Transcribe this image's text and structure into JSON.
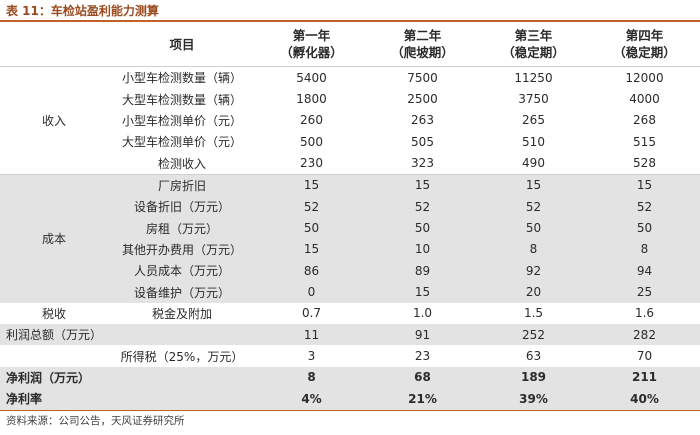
{
  "title": "表 11：车检站盈利能力测算",
  "header": {
    "item": "项目",
    "cols": [
      {
        "line1": "第一年",
        "line2": "（孵化器）"
      },
      {
        "line1": "第二年",
        "line2": "（爬坡期）"
      },
      {
        "line1": "第三年",
        "line2": "（稳定期）"
      },
      {
        "line1": "第四年",
        "line2": "（稳定期）"
      }
    ]
  },
  "groups": {
    "income": "收入",
    "cost": "成本",
    "tax": "税收"
  },
  "rows": {
    "income": [
      {
        "label": "小型车检测数量（辆）",
        "values": [
          "5400",
          "7500",
          "11250",
          "12000"
        ]
      },
      {
        "label": "大型车检测数量（辆）",
        "values": [
          "1800",
          "2500",
          "3750",
          "4000"
        ]
      },
      {
        "label": "小型车检测单价（元）",
        "values": [
          "260",
          "263",
          "265",
          "268"
        ]
      },
      {
        "label": "大型车检测单价（元）",
        "values": [
          "500",
          "505",
          "510",
          "515"
        ]
      },
      {
        "label": "检测收入",
        "values": [
          "230",
          "323",
          "490",
          "528"
        ]
      }
    ],
    "cost": [
      {
        "label": "厂房折旧",
        "values": [
          "15",
          "15",
          "15",
          "15"
        ]
      },
      {
        "label": "设备折旧（万元）",
        "values": [
          "52",
          "52",
          "52",
          "52"
        ]
      },
      {
        "label": "房租（万元）",
        "values": [
          "50",
          "50",
          "50",
          "50"
        ]
      },
      {
        "label": "其他开办费用（万元）",
        "values": [
          "15",
          "10",
          "8",
          "8"
        ]
      },
      {
        "label": "人员成本（万元）",
        "values": [
          "86",
          "89",
          "92",
          "94"
        ]
      },
      {
        "label": "设备维护（万元）",
        "values": [
          "0",
          "15",
          "20",
          "25"
        ]
      }
    ],
    "tax": {
      "label": "税金及附加",
      "values": [
        "0.7",
        "1.0",
        "1.5",
        "1.6"
      ]
    },
    "gross_profit": {
      "label": "利润总额（万元）",
      "values": [
        "11",
        "91",
        "252",
        "282"
      ]
    },
    "income_tax": {
      "label": "所得税（25%，万元）",
      "values": [
        "3",
        "23",
        "63",
        "70"
      ]
    },
    "net_profit": {
      "label": "净利润（万元）",
      "values": [
        "8",
        "68",
        "189",
        "211"
      ]
    },
    "net_margin": {
      "label": "净利率",
      "values": [
        "4%",
        "21%",
        "39%",
        "40%"
      ]
    }
  },
  "footer": "资料来源：公司公告，天风证券研究所"
}
